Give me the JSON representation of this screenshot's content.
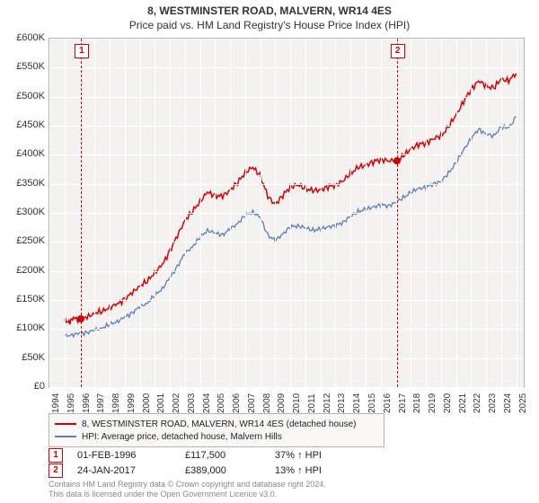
{
  "title": "8, WESTMINSTER ROAD, MALVERN, WR14 4ES",
  "subtitle": "Price paid vs. HM Land Registry's House Price Index (HPI)",
  "chart": {
    "type": "line",
    "background_color": "#f4f2f1",
    "grid_color": "#ffffff",
    "axis_color": "#b8b4af",
    "x_min": 1994,
    "x_max": 2025.5,
    "y_min": 0,
    "y_max": 600000,
    "yticks": [
      0,
      50000,
      100000,
      150000,
      200000,
      250000,
      300000,
      350000,
      400000,
      450000,
      500000,
      550000,
      600000
    ],
    "ytick_labels": [
      "£0",
      "£50K",
      "£100K",
      "£150K",
      "£200K",
      "£250K",
      "£300K",
      "£350K",
      "£400K",
      "£450K",
      "£500K",
      "£550K",
      "£600K"
    ],
    "xticks": [
      1994,
      1995,
      1996,
      1997,
      1998,
      1999,
      2000,
      2001,
      2002,
      2003,
      2004,
      2005,
      2006,
      2007,
      2008,
      2009,
      2010,
      2011,
      2012,
      2013,
      2014,
      2015,
      2016,
      2017,
      2018,
      2019,
      2020,
      2021,
      2022,
      2023,
      2024,
      2025
    ],
    "series": [
      {
        "name": "property",
        "label": "8, WESTMINSTER ROAD, MALVERN, WR14 4ES (detached house)",
        "color": "#d80000",
        "width": 1.5,
        "points": [
          [
            1995.0,
            115000
          ],
          [
            1995.3,
            112000
          ],
          [
            1995.6,
            118000
          ],
          [
            1996.08,
            117500
          ],
          [
            1996.5,
            120000
          ],
          [
            1997,
            128000
          ],
          [
            1997.5,
            130000
          ],
          [
            1998,
            138000
          ],
          [
            1998.5,
            142000
          ],
          [
            1999,
            152000
          ],
          [
            1999.5,
            162000
          ],
          [
            2000,
            175000
          ],
          [
            2000.5,
            182000
          ],
          [
            2001,
            198000
          ],
          [
            2001.5,
            210000
          ],
          [
            2002,
            235000
          ],
          [
            2002.5,
            260000
          ],
          [
            2003,
            288000
          ],
          [
            2003.5,
            302000
          ],
          [
            2004,
            320000
          ],
          [
            2004.5,
            335000
          ],
          [
            2005,
            330000
          ],
          [
            2005.5,
            328000
          ],
          [
            2006,
            340000
          ],
          [
            2006.5,
            352000
          ],
          [
            2007,
            370000
          ],
          [
            2007.5,
            378000
          ],
          [
            2008,
            365000
          ],
          [
            2008.5,
            328000
          ],
          [
            2009,
            315000
          ],
          [
            2009.5,
            330000
          ],
          [
            2010,
            345000
          ],
          [
            2010.5,
            348000
          ],
          [
            2011,
            342000
          ],
          [
            2011.5,
            338000
          ],
          [
            2012,
            340000
          ],
          [
            2012.5,
            345000
          ],
          [
            2013,
            348000
          ],
          [
            2013.5,
            355000
          ],
          [
            2014,
            368000
          ],
          [
            2014.5,
            378000
          ],
          [
            2015,
            382000
          ],
          [
            2015.5,
            388000
          ],
          [
            2016,
            392000
          ],
          [
            2016.5,
            390000
          ],
          [
            2017.07,
            389000
          ],
          [
            2017.5,
            398000
          ],
          [
            2018,
            410000
          ],
          [
            2018.5,
            418000
          ],
          [
            2019,
            420000
          ],
          [
            2019.5,
            428000
          ],
          [
            2020,
            432000
          ],
          [
            2020.5,
            448000
          ],
          [
            2021,
            468000
          ],
          [
            2021.5,
            492000
          ],
          [
            2022,
            512000
          ],
          [
            2022.5,
            528000
          ],
          [
            2023,
            518000
          ],
          [
            2023.5,
            515000
          ],
          [
            2024,
            530000
          ],
          [
            2024.5,
            528000
          ],
          [
            2025,
            540000
          ]
        ]
      },
      {
        "name": "hpi",
        "label": "HPI: Average price, detached house, Malvern Hills",
        "color": "#5b7fb8",
        "width": 1.3,
        "points": [
          [
            1995.0,
            88000
          ],
          [
            1995.5,
            90000
          ],
          [
            1996,
            92000
          ],
          [
            1996.5,
            94000
          ],
          [
            1997,
            98000
          ],
          [
            1997.5,
            102000
          ],
          [
            1998,
            108000
          ],
          [
            1998.5,
            113000
          ],
          [
            1999,
            120000
          ],
          [
            1999.5,
            128000
          ],
          [
            2000,
            138000
          ],
          [
            2000.5,
            145000
          ],
          [
            2001,
            158000
          ],
          [
            2001.5,
            170000
          ],
          [
            2002,
            188000
          ],
          [
            2002.5,
            208000
          ],
          [
            2003,
            230000
          ],
          [
            2003.5,
            242000
          ],
          [
            2004,
            258000
          ],
          [
            2004.5,
            270000
          ],
          [
            2005,
            265000
          ],
          [
            2005.5,
            262000
          ],
          [
            2006,
            272000
          ],
          [
            2006.5,
            282000
          ],
          [
            2007,
            296000
          ],
          [
            2007.5,
            302000
          ],
          [
            2008,
            292000
          ],
          [
            2008.5,
            262000
          ],
          [
            2009,
            252000
          ],
          [
            2009.5,
            264000
          ],
          [
            2010,
            276000
          ],
          [
            2010.5,
            278000
          ],
          [
            2011,
            274000
          ],
          [
            2011.5,
            270000
          ],
          [
            2012,
            272000
          ],
          [
            2012.5,
            276000
          ],
          [
            2013,
            278000
          ],
          [
            2013.5,
            284000
          ],
          [
            2014,
            294000
          ],
          [
            2014.5,
            302000
          ],
          [
            2015,
            306000
          ],
          [
            2015.5,
            310000
          ],
          [
            2016,
            314000
          ],
          [
            2016.5,
            312000
          ],
          [
            2017,
            318000
          ],
          [
            2017.5,
            326000
          ],
          [
            2018,
            335000
          ],
          [
            2018.5,
            342000
          ],
          [
            2019,
            344000
          ],
          [
            2019.5,
            350000
          ],
          [
            2020,
            354000
          ],
          [
            2020.5,
            368000
          ],
          [
            2021,
            386000
          ],
          [
            2021.5,
            408000
          ],
          [
            2022,
            428000
          ],
          [
            2022.5,
            444000
          ],
          [
            2023,
            436000
          ],
          [
            2023.5,
            432000
          ],
          [
            2024,
            448000
          ],
          [
            2024.5,
            446000
          ],
          [
            2025,
            465000
          ]
        ]
      }
    ],
    "markers": [
      {
        "n": "1",
        "x": 1996.08,
        "y": 117500
      },
      {
        "n": "2",
        "x": 2017.07,
        "y": 389000
      }
    ]
  },
  "legend": {
    "items": [
      {
        "color": "#d80000",
        "label": "8, WESTMINSTER ROAD, MALVERN, WR14 4ES (detached house)"
      },
      {
        "color": "#5b7fb8",
        "label": "HPI: Average price, detached house, Malvern Hills"
      }
    ]
  },
  "transactions": [
    {
      "n": "1",
      "date": "01-FEB-1996",
      "price": "£117,500",
      "hpi": "37% ↑ HPI"
    },
    {
      "n": "2",
      "date": "24-JAN-2017",
      "price": "£389,000",
      "hpi": "13% ↑ HPI"
    }
  ],
  "footer_line1": "Contains HM Land Registry data © Crown copyright and database right 2024.",
  "footer_line2": "This data is licensed under the Open Government Licence v3.0."
}
